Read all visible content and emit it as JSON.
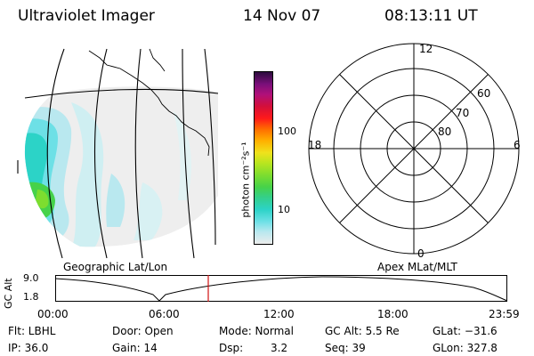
{
  "header": {
    "instrument": "Ultraviolet Imager",
    "date": "14 Nov 07",
    "time": "08:13:11 UT"
  },
  "colorbar": {
    "label": "photon cm⁻²s⁻¹",
    "ticks": [
      "100",
      "10"
    ],
    "scale": "log",
    "colors": [
      "#ececec",
      "#b9e8ef",
      "#6de0e6",
      "#2cd3c7",
      "#34cf8a",
      "#46d24a",
      "#7ddd2f",
      "#b9e51f",
      "#efe21c",
      "#ffb000",
      "#ff6a00",
      "#ff1a1a",
      "#d40f3a",
      "#b0107a",
      "#7a0f7a",
      "#2c0b3d"
    ]
  },
  "geographic_panel": {
    "label": "Geographic Lat/Lon"
  },
  "polar_panel": {
    "label": "Apex MLat/MLT",
    "mlt_labels": {
      "top": "12",
      "left": "18",
      "right": "6",
      "bottom": "0"
    },
    "lat_labels": [
      "60",
      "70",
      "80"
    ]
  },
  "altitude_plot": {
    "ylabel": "GC Alt",
    "yticks": [
      "9.0",
      "1.8"
    ],
    "xticks": [
      "00:00",
      "06:00",
      "12:00",
      "18:00",
      "23:59"
    ],
    "current_time_marker_color": "#d01010"
  },
  "footer": {
    "flt": "Flt: LBHL",
    "ip": "IP: 36.0",
    "door": "Door: Open",
    "gain": "Gain: 14",
    "mode": "Mode: Normal",
    "dsp_label": "Dsp:",
    "dsp_value": "3.2",
    "gc_alt": "GC Alt: 5.5 Re",
    "seq": "Seq: 39",
    "glat": "GLat: −31.6",
    "glon": "GLon: 327.8"
  }
}
